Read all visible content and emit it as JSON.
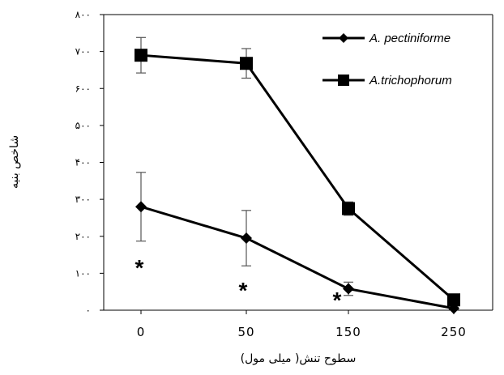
{
  "chart_data": {
    "type": "line",
    "categories": [
      "0",
      "50",
      "150",
      "250"
    ],
    "xlabel": "سطوح تنش( میلی مول)",
    "ylabel": "شاخص بنیه",
    "ylim": [
      0,
      800
    ],
    "yticks": [
      "۰",
      "۱۰۰",
      "۲۰۰",
      "۳۰۰",
      "۴۰۰",
      "۵۰۰",
      "۶۰۰",
      "۷۰۰",
      "۸۰۰"
    ],
    "legend_position": "top-right",
    "grid": false,
    "series": [
      {
        "name": "A. pectiniforme",
        "marker": "diamond",
        "values": [
          280,
          195,
          58,
          5
        ],
        "errors": [
          93,
          75,
          18,
          3
        ]
      },
      {
        "name": "A.trichophorum",
        "marker": "square",
        "values": [
          690,
          668,
          275,
          28
        ],
        "errors": [
          48,
          40,
          18,
          8
        ]
      }
    ],
    "annotations": [
      {
        "category": "0",
        "text": "*"
      },
      {
        "category": "50",
        "text": "*"
      },
      {
        "category": "150",
        "text": "*"
      }
    ],
    "colors": {
      "line": "#000000"
    }
  }
}
